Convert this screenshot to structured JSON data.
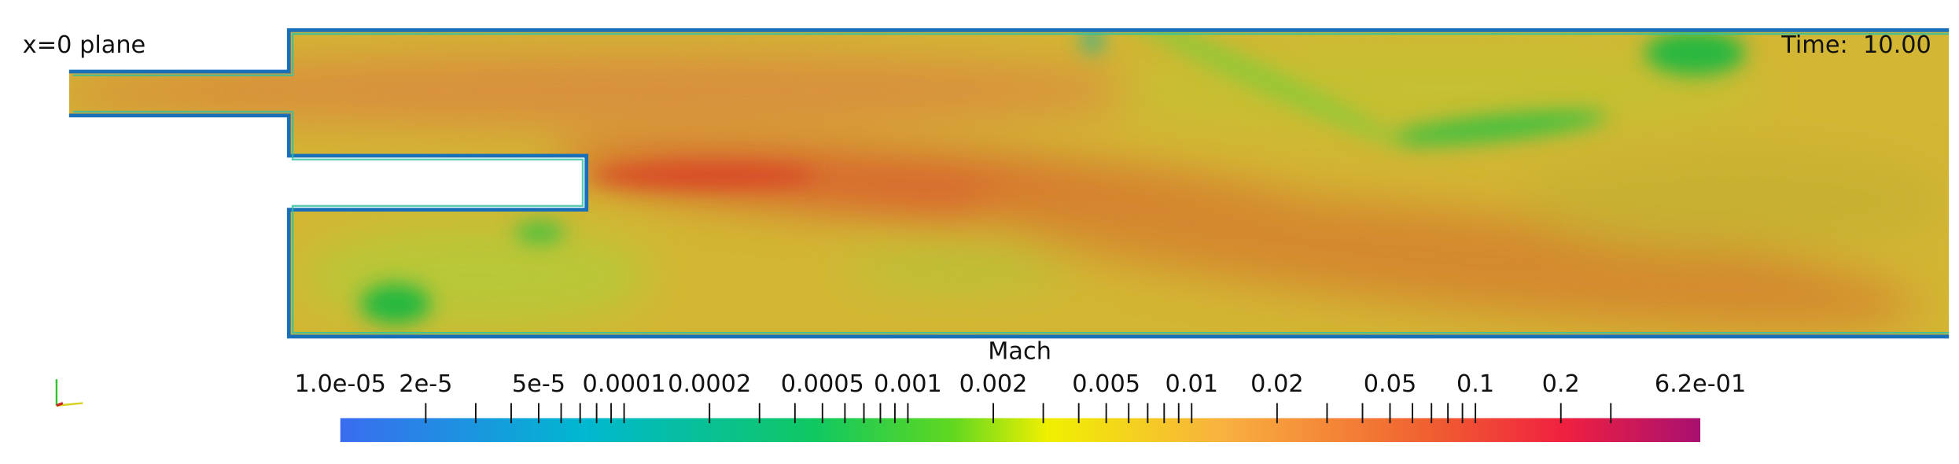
{
  "view": {
    "label": "x=0 plane",
    "time": "Time:  10.00"
  },
  "colorbar": {
    "title": "Mach",
    "log": true,
    "range": [
      {
        "value": 1e-05,
        "label": "1.0e-05"
      },
      {
        "value": 0.62,
        "label": "6.2e-01"
      }
    ],
    "ticks": [
      {
        "value": 2e-05,
        "label": "2e-5"
      },
      {
        "value": 5e-05,
        "label": "5e-5"
      },
      0.0001,
      0.0002,
      0.0005,
      0.001,
      0.002,
      0.005,
      0.01,
      0.02,
      0.05,
      0.1,
      0.2
    ],
    "minor_ticks": [
      3e-05,
      4e-05,
      6e-05,
      7e-05,
      8e-05,
      9e-05,
      0.0003,
      0.0004,
      0.0006,
      0.0007,
      0.0008,
      0.0009,
      0.003,
      0.004,
      0.006,
      0.007,
      0.008,
      0.009,
      0.03,
      0.04,
      0.06,
      0.07,
      0.08,
      0.09,
      0.3
    ]
  }
}
